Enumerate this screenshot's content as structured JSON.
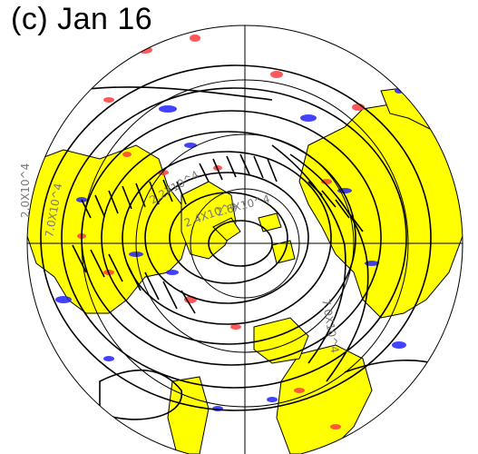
{
  "panel": {
    "title": "(c) Jan 16",
    "contour_labels": [
      "2.0X10^4",
      "7.0X10^4",
      "2.2X10^4",
      "2.4X10^4",
      "2.6X10^4",
      "7.0X10^4"
    ]
  },
  "map": {
    "projection": "north polar stereographic",
    "center": "North Pole",
    "land_color": "#ffff00",
    "positive_anomaly_color": "#ff3b3b",
    "negative_anomaly_color": "#2222ff",
    "contour_color": "#000000"
  }
}
